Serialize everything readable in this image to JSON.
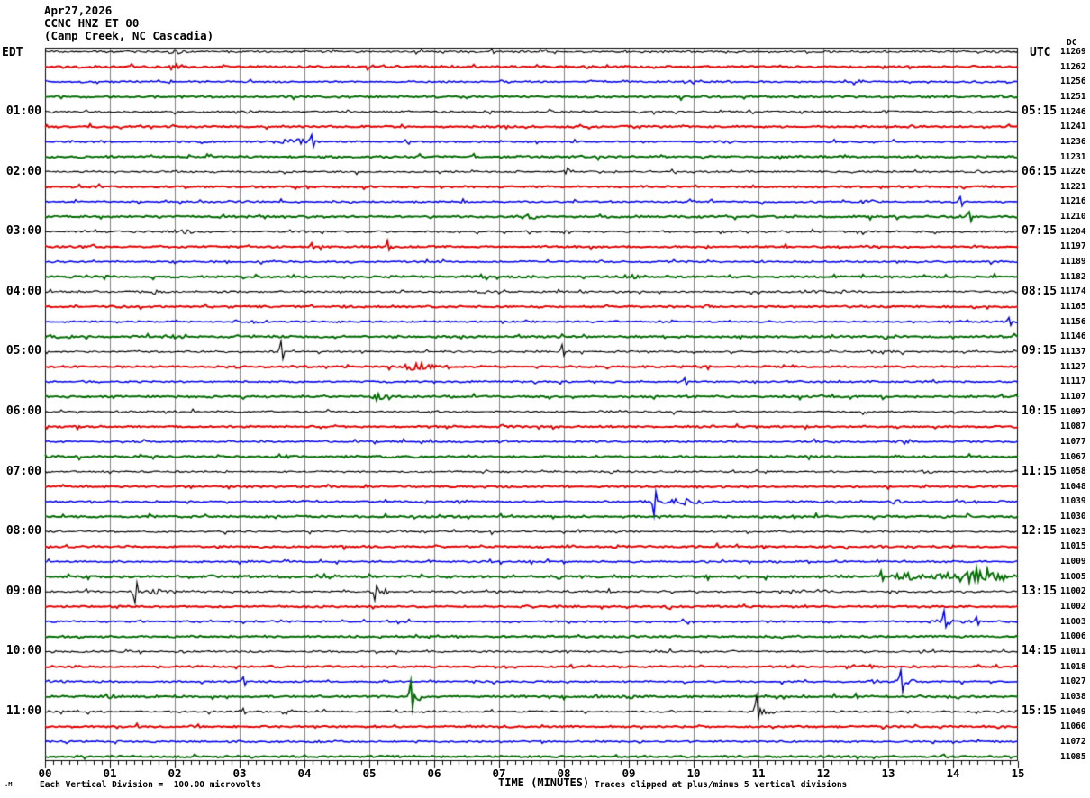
{
  "header": {
    "date": "Apr27,2026",
    "station": "CCNC HNZ ET 00",
    "location": "(Camp Creek, NC Cascadia)"
  },
  "axes": {
    "left_title": "EDT",
    "right_title": "UTC",
    "dc_header": "DC",
    "x_title": "TIME (MINUTES)",
    "x_tick_labels": [
      "00",
      "01",
      "02",
      "03",
      "04",
      "05",
      "06",
      "07",
      "08",
      "09",
      "10",
      "11",
      "12",
      "13",
      "14",
      "15"
    ]
  },
  "footer": {
    "logo": ".M",
    "scale_note": "Each Vertical Division =  100.00 microvolts",
    "clip_note": "Traces clipped at plus/minus 5 vertical divisions"
  },
  "chart_data": {
    "type": "line",
    "title": "CCNC HNZ ET 00 (Camp Creek, NC Cascadia) helicorder, Apr27,2026",
    "x_axis": {
      "label": "TIME (MINUTES)",
      "min": 0,
      "max": 15,
      "major_tick": 1,
      "minor_divisions": 8
    },
    "minutes_per_row": 15,
    "row_color_cycle": [
      "#000000",
      "#e00000",
      "#0000e8",
      "#006a00"
    ],
    "grid_color": "#808080",
    "units_note": "Each Vertical Division =  100.00 microvolts",
    "clip_note": "Traces clipped at plus/minus 5 vertical divisions",
    "event_format": "[minute_center, half_width_minutes, amplitude_px, type b=burst s=spike]",
    "rows": [
      {
        "edt": "",
        "utc": "",
        "dc": "11269",
        "noise": 1.3,
        "events": [
          [
            2.0,
            0.3,
            2,
            "b"
          ],
          [
            6.9,
            0.08,
            3,
            "s"
          ]
        ]
      },
      {
        "edt": "",
        "utc": "",
        "dc": "11262",
        "noise": 1.35,
        "events": [
          [
            1.95,
            0.25,
            3,
            "b"
          ]
        ]
      },
      {
        "edt": "",
        "utc": "",
        "dc": "11256",
        "noise": 1.15,
        "events": [
          [
            10.0,
            0.15,
            2,
            "b"
          ]
        ]
      },
      {
        "edt": "",
        "utc": "",
        "dc": "11251",
        "noise": 1.3,
        "events": []
      },
      {
        "edt": "01:00",
        "utc": "05:15",
        "dc": "11246",
        "noise": 1.25,
        "events": [
          [
            13.0,
            0.1,
            2,
            "b"
          ]
        ]
      },
      {
        "edt": "",
        "utc": "",
        "dc": "11241",
        "noise": 1.25,
        "events": []
      },
      {
        "edt": "",
        "utc": "",
        "dc": "11236",
        "noise": 1.15,
        "events": [
          [
            3.8,
            0.35,
            3.5,
            "b"
          ],
          [
            4.12,
            0.05,
            6,
            "s"
          ],
          [
            10.5,
            0.15,
            2.5,
            "b"
          ]
        ]
      },
      {
        "edt": "",
        "utc": "",
        "dc": "11231",
        "noise": 1.3,
        "events": []
      },
      {
        "edt": "02:00",
        "utc": "06:15",
        "dc": "11226",
        "noise": 1.25,
        "events": [
          [
            8.05,
            0.1,
            3,
            "b"
          ],
          [
            14.4,
            0.15,
            2,
            "b"
          ]
        ]
      },
      {
        "edt": "",
        "utc": "",
        "dc": "11221",
        "noise": 1.2,
        "events": []
      },
      {
        "edt": "",
        "utc": "",
        "dc": "11216",
        "noise": 1.15,
        "events": [
          [
            12.7,
            0.15,
            2,
            "b"
          ],
          [
            14.1,
            0.05,
            6,
            "s"
          ]
        ]
      },
      {
        "edt": "",
        "utc": "",
        "dc": "11210",
        "noise": 1.35,
        "events": [
          [
            7.4,
            0.2,
            3,
            "b"
          ],
          [
            14.25,
            0.05,
            6,
            "s"
          ]
        ]
      },
      {
        "edt": "03:00",
        "utc": "07:15",
        "dc": "11204",
        "noise": 1.25,
        "events": [
          [
            2.1,
            0.2,
            2.5,
            "b"
          ]
        ]
      },
      {
        "edt": "",
        "utc": "",
        "dc": "11197",
        "noise": 1.2,
        "events": [
          [
            4.1,
            0.05,
            4,
            "s"
          ],
          [
            5.28,
            0.05,
            6,
            "s"
          ]
        ]
      },
      {
        "edt": "",
        "utc": "",
        "dc": "11189",
        "noise": 1.15,
        "events": []
      },
      {
        "edt": "",
        "utc": "",
        "dc": "11182",
        "noise": 1.35,
        "events": [
          [
            9.05,
            0.15,
            3,
            "b"
          ]
        ]
      },
      {
        "edt": "04:00",
        "utc": "08:15",
        "dc": "11174",
        "noise": 1.25,
        "events": [
          [
            1.75,
            0.2,
            2,
            "b"
          ],
          [
            6.75,
            0.15,
            2,
            "b"
          ],
          [
            11.8,
            0.2,
            2,
            "b"
          ],
          [
            12.3,
            0.15,
            2,
            "b"
          ]
        ]
      },
      {
        "edt": "",
        "utc": "",
        "dc": "11165",
        "noise": 1.2,
        "events": []
      },
      {
        "edt": "",
        "utc": "",
        "dc": "11156",
        "noise": 1.15,
        "events": [
          [
            3.35,
            0.2,
            2,
            "b"
          ],
          [
            14.85,
            0.05,
            5,
            "s"
          ]
        ]
      },
      {
        "edt": "",
        "utc": "",
        "dc": "11146",
        "noise": 1.3,
        "events": []
      },
      {
        "edt": "05:00",
        "utc": "09:15",
        "dc": "11137",
        "noise": 1.25,
        "events": [
          [
            3.65,
            0.05,
            12,
            "s"
          ],
          [
            7.96,
            0.05,
            8,
            "s"
          ],
          [
            12.15,
            0.15,
            2,
            "b"
          ],
          [
            12.7,
            0.15,
            2,
            "b"
          ]
        ]
      },
      {
        "edt": "",
        "utc": "",
        "dc": "11127",
        "noise": 1.2,
        "events": [
          [
            5.75,
            0.22,
            5,
            "b"
          ]
        ]
      },
      {
        "edt": "",
        "utc": "",
        "dc": "11117",
        "noise": 1.15,
        "events": [
          [
            9.85,
            0.05,
            4,
            "s"
          ]
        ]
      },
      {
        "edt": "",
        "utc": "",
        "dc": "11107",
        "noise": 1.3,
        "events": [
          [
            5.2,
            0.15,
            5,
            "b"
          ]
        ]
      },
      {
        "edt": "06:00",
        "utc": "10:15",
        "dc": "11097",
        "noise": 1.2,
        "events": []
      },
      {
        "edt": "",
        "utc": "",
        "dc": "11087",
        "noise": 1.2,
        "events": []
      },
      {
        "edt": "",
        "utc": "",
        "dc": "11077",
        "noise": 1.15,
        "events": [
          [
            13.3,
            0.15,
            2,
            "b"
          ]
        ]
      },
      {
        "edt": "",
        "utc": "",
        "dc": "11067",
        "noise": 1.3,
        "events": []
      },
      {
        "edt": "07:00",
        "utc": "11:15",
        "dc": "11058",
        "noise": 1.2,
        "events": [
          [
            13.6,
            0.2,
            2,
            "b"
          ]
        ]
      },
      {
        "edt": "",
        "utc": "",
        "dc": "11048",
        "noise": 1.2,
        "events": []
      },
      {
        "edt": "",
        "utc": "",
        "dc": "11039",
        "noise": 1.15,
        "events": [
          [
            9.39,
            0.05,
            -15,
            "s"
          ],
          [
            9.8,
            0.4,
            3.5,
            "b"
          ],
          [
            13.1,
            0.15,
            2,
            "b"
          ]
        ]
      },
      {
        "edt": "",
        "utc": "",
        "dc": "11030",
        "noise": 1.3,
        "events": []
      },
      {
        "edt": "08:00",
        "utc": "12:15",
        "dc": "11023",
        "noise": 1.2,
        "events": []
      },
      {
        "edt": "",
        "utc": "",
        "dc": "11015",
        "noise": 1.2,
        "events": []
      },
      {
        "edt": "",
        "utc": "",
        "dc": "11009",
        "noise": 1.15,
        "events": []
      },
      {
        "edt": "",
        "utc": "",
        "dc": "11005",
        "noise": 1.6,
        "events": [
          [
            12.9,
            0.08,
            5,
            "s"
          ],
          [
            13.3,
            0.35,
            3.5,
            "b"
          ],
          [
            13.9,
            1.1,
            3,
            "b"
          ],
          [
            14.3,
            0.07,
            9,
            "s"
          ],
          [
            14.45,
            0.4,
            6,
            "b"
          ]
        ]
      },
      {
        "edt": "09:00",
        "utc": "13:15",
        "dc": "11002",
        "noise": 1.25,
        "events": [
          [
            1.39,
            0.05,
            -13,
            "s"
          ],
          [
            1.75,
            0.3,
            3.5,
            "b"
          ],
          [
            5.07,
            0.05,
            -12,
            "s"
          ],
          [
            5.18,
            0.15,
            3.5,
            "b"
          ]
        ]
      },
      {
        "edt": "",
        "utc": "",
        "dc": "11002",
        "noise": 1.2,
        "events": []
      },
      {
        "edt": "",
        "utc": "",
        "dc": "11003",
        "noise": 1.15,
        "events": [
          [
            13.87,
            0.05,
            12,
            "s"
          ],
          [
            13.95,
            0.3,
            3.5,
            "b"
          ],
          [
            14.35,
            0.05,
            6,
            "s"
          ]
        ]
      },
      {
        "edt": "",
        "utc": "",
        "dc": "11006",
        "noise": 1.3,
        "events": []
      },
      {
        "edt": "10:00",
        "utc": "14:15",
        "dc": "11011",
        "noise": 1.2,
        "events": [
          [
            10.7,
            0.15,
            2,
            "b"
          ]
        ]
      },
      {
        "edt": "",
        "utc": "",
        "dc": "11018",
        "noise": 1.2,
        "events": [
          [
            12.6,
            0.35,
            1.8,
            "b"
          ]
        ]
      },
      {
        "edt": "",
        "utc": "",
        "dc": "11027",
        "noise": 1.15,
        "events": [
          [
            3.06,
            0.05,
            5,
            "s"
          ],
          [
            12.75,
            0.1,
            3,
            "b"
          ],
          [
            13.2,
            0.05,
            12,
            "s"
          ],
          [
            13.28,
            0.15,
            4,
            "b"
          ]
        ]
      },
      {
        "edt": "",
        "utc": "",
        "dc": "11038",
        "noise": 1.35,
        "events": [
          [
            5.63,
            0.04,
            17,
            "s"
          ],
          [
            5.75,
            0.12,
            4,
            "b"
          ],
          [
            9.05,
            0.1,
            3,
            "b"
          ]
        ]
      },
      {
        "edt": "11:00",
        "utc": "15:15",
        "dc": "11049",
        "noise": 1.25,
        "events": [
          [
            3.06,
            0.04,
            4,
            "s"
          ],
          [
            10.97,
            0.05,
            15,
            "s"
          ],
          [
            11.05,
            0.2,
            4,
            "b"
          ]
        ]
      },
      {
        "edt": "",
        "utc": "",
        "dc": "11060",
        "noise": 1.2,
        "events": []
      },
      {
        "edt": "",
        "utc": "",
        "dc": "11072",
        "noise": 1.15,
        "events": []
      },
      {
        "edt": "",
        "utc": "",
        "dc": "11085",
        "noise": 1.3,
        "events": []
      }
    ]
  }
}
